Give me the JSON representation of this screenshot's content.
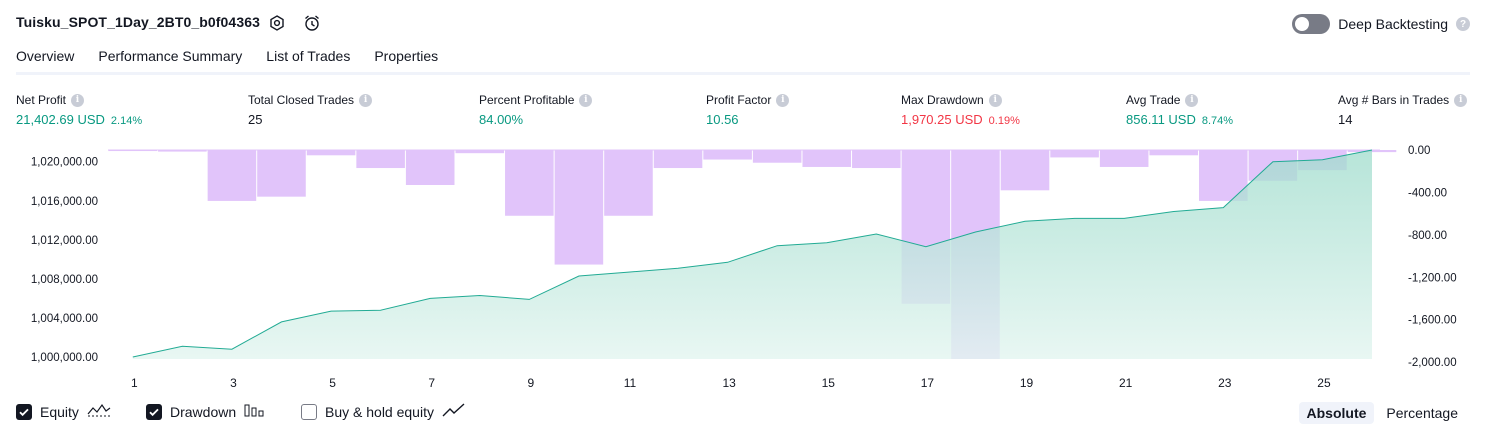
{
  "header": {
    "title": "Tuisku_SPOT_1Day_2BT0_b0f04363",
    "deep_backtesting_label": "Deep Backtesting"
  },
  "tabs": [
    {
      "label": "Overview",
      "active": true
    },
    {
      "label": "Performance Summary",
      "active": false
    },
    {
      "label": "List of Trades",
      "active": false
    },
    {
      "label": "Properties",
      "active": false
    }
  ],
  "metrics": {
    "net_profit": {
      "label": "Net Profit",
      "value": "21,402.69 USD",
      "sub": "2.14%"
    },
    "total_closed_trades": {
      "label": "Total Closed Trades",
      "value": "25"
    },
    "percent_profitable": {
      "label": "Percent Profitable",
      "value": "84.00%"
    },
    "profit_factor": {
      "label": "Profit Factor",
      "value": "10.56"
    },
    "max_drawdown": {
      "label": "Max Drawdown",
      "value": "1,970.25 USD",
      "sub": "0.19%"
    },
    "avg_trade": {
      "label": "Avg Trade",
      "value": "856.11 USD",
      "sub": "8.74%"
    },
    "avg_bars": {
      "label": "Avg # Bars in Trades",
      "value": "14"
    }
  },
  "footer": {
    "equity_label": "Equity",
    "drawdown_label": "Drawdown",
    "buyhold_label": "Buy & hold equity",
    "absolute_label": "Absolute",
    "percentage_label": "Percentage"
  },
  "colors": {
    "equity_line": "#22ab94",
    "equity_fill": "#c7ece3",
    "drawdown_bar": "#e1c4fa",
    "positive": "#089981",
    "negative": "#f23645"
  },
  "chart_data": {
    "type": "area",
    "x_ticks": [
      "1",
      "3",
      "5",
      "7",
      "9",
      "11",
      "13",
      "15",
      "17",
      "19",
      "21",
      "23",
      "25"
    ],
    "left_axis": {
      "ticks": [
        "1,000,000.00",
        "1,004,000.00",
        "1,008,000.00",
        "1,012,000.00",
        "1,016,000.00",
        "1,020,000.00"
      ],
      "ylim": [
        999800,
        1021200
      ]
    },
    "right_axis": {
      "ticks": [
        "0.00",
        "-400.00",
        "-800.00",
        "-1,200.00",
        "-1,600.00",
        "-2,000.00"
      ],
      "ylim": [
        -1970.25,
        0
      ]
    },
    "x": [
      1,
      2,
      3,
      4,
      5,
      6,
      7,
      8,
      9,
      10,
      11,
      12,
      13,
      14,
      15,
      16,
      17,
      18,
      19,
      20,
      21,
      22,
      23,
      24,
      25,
      26
    ],
    "series": [
      {
        "name": "Equity",
        "axis": "left",
        "values": [
          1000000,
          1001100,
          1000800,
          1003600,
          1004700,
          1004800,
          1006000,
          1006300,
          1005900,
          1008300,
          1008700,
          1009100,
          1009700,
          1011400,
          1011700,
          1012600,
          1011300,
          1012800,
          1013900,
          1014200,
          1014200,
          1014900,
          1015300,
          1020000,
          1020200,
          1021200
        ]
      },
      {
        "name": "Drawdown",
        "axis": "right",
        "values": [
          -10,
          -15,
          -480,
          -440,
          -50,
          -170,
          -330,
          -30,
          -620,
          -1080,
          -620,
          -170,
          -90,
          -120,
          -160,
          -170,
          -1450,
          -1970.25,
          -380,
          -70,
          -160,
          -50,
          -480,
          -290,
          -190,
          -20
        ]
      }
    ]
  }
}
